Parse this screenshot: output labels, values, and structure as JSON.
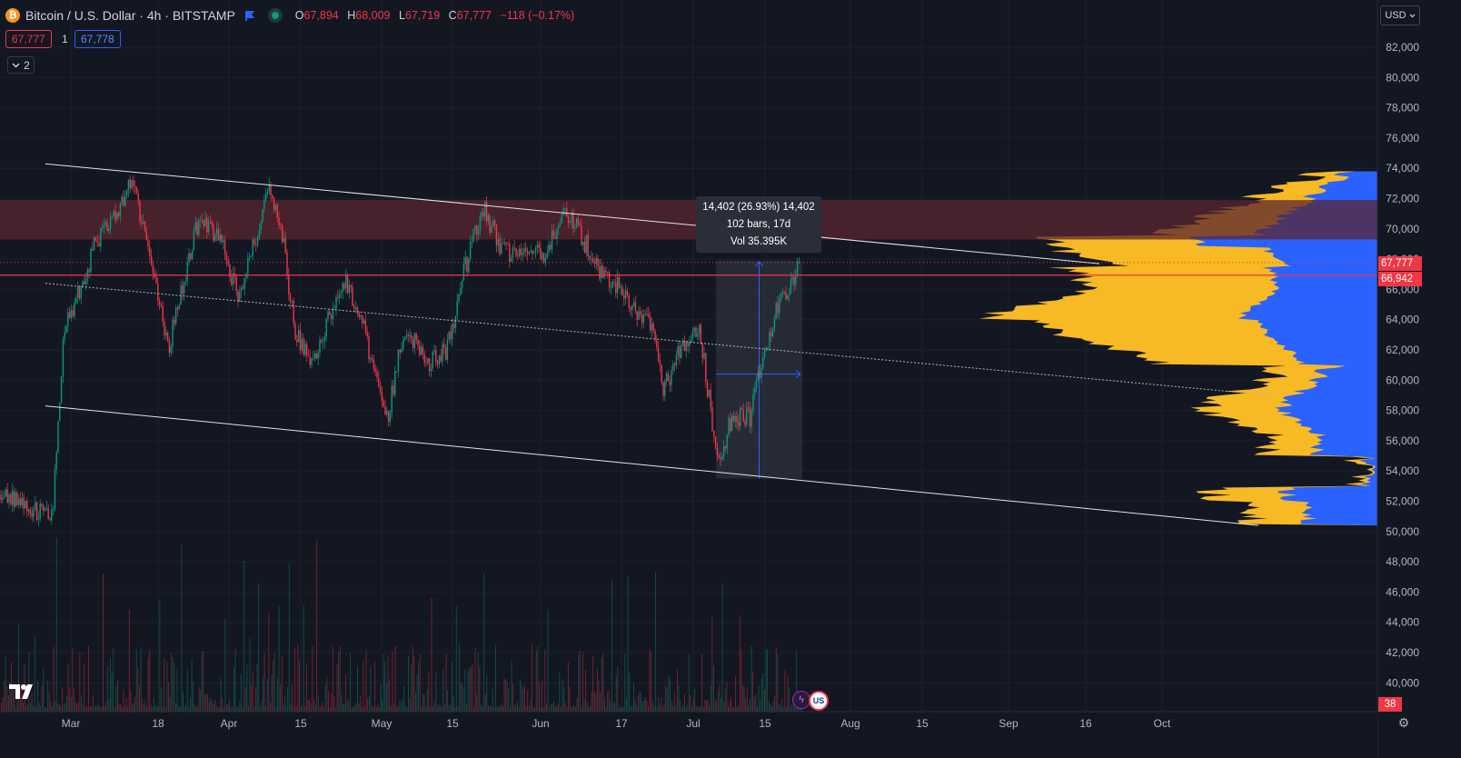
{
  "header": {
    "coin_glyph": "₿",
    "title": "Bitcoin / U.S. Dollar · 4h · BITSTAMP",
    "ohlc": [
      {
        "k": "O",
        "v": "67,894"
      },
      {
        "k": "H",
        "v": "68,009"
      },
      {
        "k": "L",
        "v": "67,719"
      },
      {
        "k": "C",
        "v": "67,777"
      },
      {
        "k": "",
        "v": "−118 (−0.17%)"
      }
    ],
    "sell_price": "67,777",
    "quantity": "1",
    "buy_price": "67,778",
    "indicators_count": "2",
    "currency": "USD"
  },
  "measure": {
    "line1": "14,402 (26.93%) 14,402",
    "line2": "102 bars, 17d",
    "line3": "Vol 35.395K"
  },
  "price_tags": {
    "last": "67,777",
    "line": "66,942",
    "countdown": "38"
  },
  "colors": {
    "background": "#131722",
    "up": "#089981",
    "down": "#f23645",
    "profile_value_area": "#f7b924",
    "profile_out": "#2962ff",
    "zone": "#5a2630"
  },
  "chart_data": {
    "type": "candlestick",
    "interval": "4h",
    "x_ticks": [
      "Mar",
      "18",
      "Apr",
      "15",
      "May",
      "15",
      "Jun",
      "17",
      "Jul",
      "15",
      "Aug",
      "15",
      "Sep",
      "16",
      "Oct"
    ],
    "y_ticks": [
      "82,000",
      "80,000",
      "78,000",
      "76,000",
      "74,000",
      "72,000",
      "70,000",
      "68,000",
      "66,000",
      "64,000",
      "62,000",
      "60,000",
      "58,000",
      "56,000",
      "54,000",
      "52,000",
      "50,000",
      "48,000",
      "46,000",
      "44,000",
      "42,000",
      "40,000"
    ],
    "ylim": [
      39000,
      83000
    ],
    "price_path": [
      [
        0,
        52400
      ],
      [
        58,
        51000
      ],
      [
        70,
        63000
      ],
      [
        105,
        69000
      ],
      [
        130,
        71000
      ],
      [
        145,
        73600
      ],
      [
        165,
        68000
      ],
      [
        185,
        62000
      ],
      [
        200,
        66000
      ],
      [
        220,
        71000
      ],
      [
        245,
        69000
      ],
      [
        262,
        65500
      ],
      [
        280,
        69000
      ],
      [
        295,
        72500
      ],
      [
        310,
        70000
      ],
      [
        325,
        63000
      ],
      [
        345,
        61000
      ],
      [
        360,
        64000
      ],
      [
        380,
        66800
      ],
      [
        400,
        63500
      ],
      [
        425,
        57000
      ],
      [
        445,
        63500
      ],
      [
        470,
        61200
      ],
      [
        492,
        62000
      ],
      [
        510,
        67000
      ],
      [
        532,
        71500
      ],
      [
        552,
        68500
      ],
      [
        575,
        68000
      ],
      [
        600,
        68500
      ],
      [
        622,
        71500
      ],
      [
        640,
        69500
      ],
      [
        660,
        67200
      ],
      [
        680,
        66300
      ],
      [
        700,
        64500
      ],
      [
        715,
        64000
      ],
      [
        730,
        59300
      ],
      [
        745,
        61500
      ],
      [
        760,
        62500
      ],
      [
        770,
        63500
      ],
      [
        782,
        58000
      ],
      [
        790,
        54200
      ],
      [
        805,
        57500
      ],
      [
        825,
        57500
      ],
      [
        840,
        61500
      ],
      [
        855,
        65000
      ],
      [
        868,
        65500
      ],
      [
        880,
        67800
      ]
    ],
    "zone_band": [
      69300,
      71900
    ],
    "horizontal_line": 66942,
    "last_price_line": 67777,
    "channel_upper": [
      [
        50,
        74300
      ],
      [
        1210,
        67700
      ]
    ],
    "channel_lower": [
      [
        50,
        58300
      ],
      [
        1385,
        50400
      ]
    ],
    "channel_mid": [
      [
        50,
        66400
      ],
      [
        1400,
        59000
      ]
    ],
    "measurement": {
      "from_bar_x": 788,
      "to_bar_x": 883,
      "low": 53500,
      "high": 67900,
      "change": 14402,
      "percent": 26.93,
      "bars": 102,
      "days": 17,
      "volume": "35.395K"
    },
    "volume_profile": {
      "point_of_control": 66942
    }
  }
}
